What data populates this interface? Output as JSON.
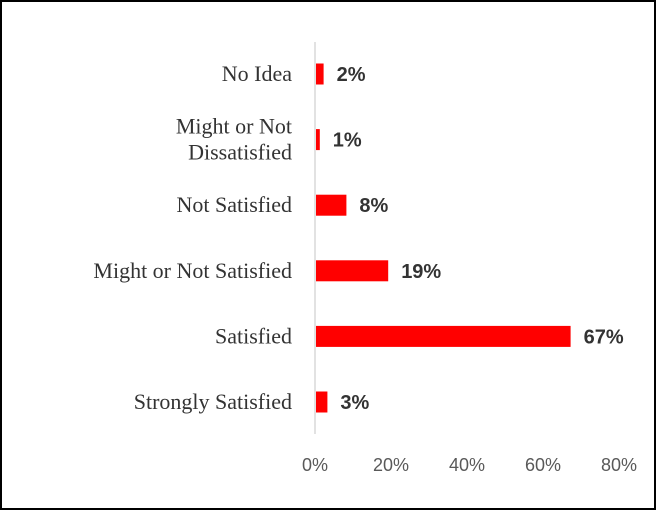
{
  "chart_data": {
    "type": "bar",
    "orientation": "horizontal",
    "categories": [
      [
        "No Idea"
      ],
      [
        "Might or Not",
        "Dissatisfied"
      ],
      [
        "Not Satisfied"
      ],
      [
        "Might or Not Satisfied"
      ],
      [
        "Satisfied"
      ],
      [
        "Strongly Satisfied"
      ]
    ],
    "values": [
      2,
      1,
      8,
      19,
      67,
      3
    ],
    "data_labels": [
      "2%",
      "1%",
      "8%",
      "19%",
      "67%",
      "3%"
    ],
    "xlim": [
      0,
      80
    ],
    "x_ticks": [
      0,
      20,
      40,
      60,
      80
    ],
    "x_tick_labels": [
      "0%",
      "20%",
      "40%",
      "60%",
      "80%"
    ],
    "grid": false,
    "legend": "none",
    "bar_color": "#ff0000"
  }
}
